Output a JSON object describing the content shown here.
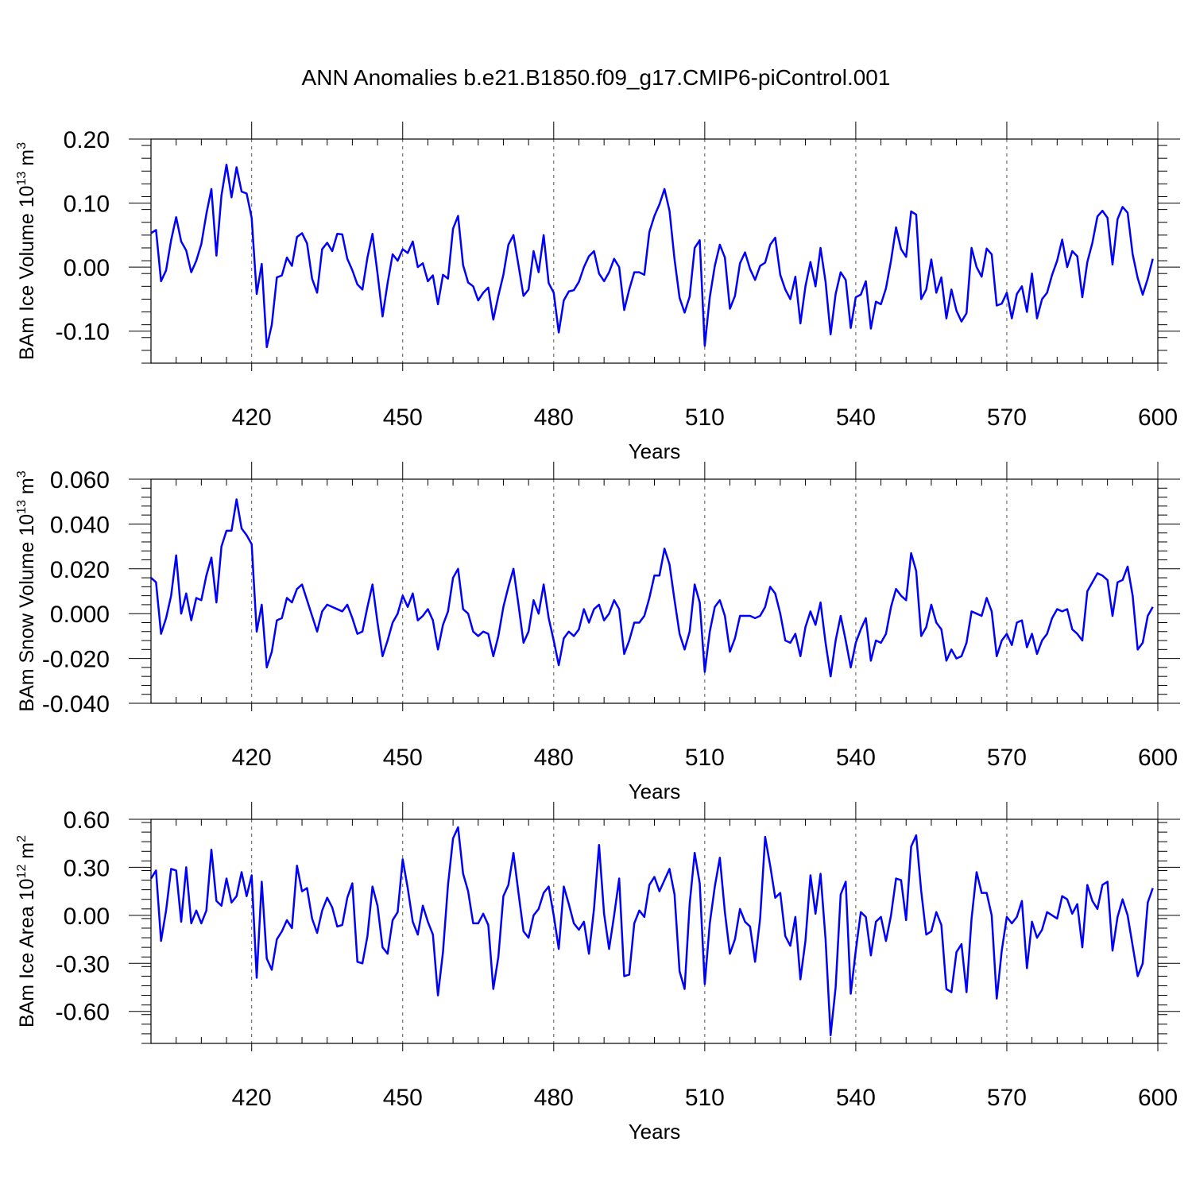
{
  "title": "ANN Anomalies b.e21.B1850.f09_g17.CMIP6-piControl.001",
  "line_color": "#0000ff",
  "chart_data": [
    {
      "type": "line",
      "ylabel": "BAm Ice Volume 10",
      "ylabel_exp": "13",
      "ylabel_unit": " m",
      "ylabel_unit_exp": "3",
      "xlabel": "Years",
      "xlim": [
        400,
        600
      ],
      "ylim": [
        -0.15,
        0.2
      ],
      "xticks": [
        420,
        450,
        480,
        510,
        540,
        570,
        600
      ],
      "xtick_labels": [
        "420",
        "450",
        "480",
        "510",
        "540",
        "570",
        "600"
      ],
      "yticks": [
        -0.1,
        0.0,
        0.1,
        0.2
      ],
      "ytick_labels": [
        "-0.10",
        "0.00",
        "0.10",
        "0.20"
      ],
      "grid": "vertical dashed at major x ticks",
      "series": [
        {
          "x_start": 400,
          "values": [
            0.053,
            0.058,
            -0.022,
            -0.005,
            0.042,
            0.078,
            0.04,
            0.026,
            -0.008,
            0.01,
            0.036,
            0.083,
            0.122,
            0.018,
            0.112,
            0.16,
            0.109,
            0.156,
            0.118,
            0.115,
            0.077,
            -0.042,
            0.005,
            -0.125,
            -0.09,
            -0.016,
            -0.013,
            0.015,
            0.002,
            0.047,
            0.053,
            0.037,
            -0.018,
            -0.04,
            0.028,
            0.038,
            0.025,
            0.052,
            0.051,
            0.013,
            -0.005,
            -0.027,
            -0.035,
            0.015,
            0.052,
            -0.01,
            -0.077,
            -0.025,
            0.02,
            0.01,
            0.028,
            0.022,
            0.04,
            0.0,
            0.006,
            -0.022,
            -0.013,
            -0.058,
            -0.012,
            -0.018,
            0.06,
            0.08,
            0.003,
            -0.024,
            -0.03,
            -0.052,
            -0.04,
            -0.032,
            -0.082,
            -0.045,
            -0.012,
            0.035,
            0.05,
            0.003,
            -0.045,
            -0.035,
            0.025,
            -0.008,
            0.05,
            -0.025,
            -0.04,
            -0.102,
            -0.052,
            -0.038,
            -0.036,
            -0.023,
            0.0,
            0.017,
            0.025,
            -0.01,
            -0.022,
            -0.008,
            0.013,
            0.0,
            -0.067,
            -0.035,
            -0.008,
            -0.008,
            -0.012,
            0.055,
            0.08,
            0.098,
            0.122,
            0.088,
            0.012,
            -0.048,
            -0.071,
            -0.046,
            0.03,
            0.042,
            -0.123,
            -0.047,
            0.002,
            0.035,
            0.015,
            -0.065,
            -0.045,
            0.006,
            0.023,
            -0.003,
            -0.02,
            0.002,
            0.007,
            0.035,
            0.046,
            -0.012,
            -0.035,
            -0.05,
            -0.015,
            -0.088,
            -0.03,
            0.008,
            -0.03,
            0.03,
            -0.023,
            -0.105,
            -0.042,
            -0.008,
            -0.02,
            -0.095,
            -0.047,
            -0.043,
            -0.022,
            -0.096,
            -0.054,
            -0.058,
            -0.033,
            0.01,
            0.062,
            0.028,
            0.016,
            0.087,
            0.082,
            -0.05,
            -0.035,
            0.012,
            -0.04,
            -0.016,
            -0.08,
            -0.035,
            -0.068,
            -0.085,
            -0.072,
            0.03,
            0.0,
            -0.015,
            0.029,
            0.02,
            -0.06,
            -0.057,
            -0.04,
            -0.08,
            -0.042,
            -0.03,
            -0.07,
            -0.01,
            -0.08,
            -0.05,
            -0.04,
            -0.012,
            0.01,
            0.043,
            0.0,
            0.025,
            0.017,
            -0.047,
            0.008,
            0.038,
            0.079,
            0.088,
            0.077,
            0.004,
            0.075,
            0.094,
            0.085,
            0.02,
            -0.017,
            -0.043,
            -0.018,
            0.013
          ]
        }
      ]
    },
    {
      "type": "line",
      "ylabel": "BAm Snow Volume 10",
      "ylabel_exp": "13",
      "ylabel_unit": " m",
      "ylabel_unit_exp": "3",
      "xlabel": "Years",
      "xlim": [
        400,
        600
      ],
      "ylim": [
        -0.04,
        0.06
      ],
      "xticks": [
        420,
        450,
        480,
        510,
        540,
        570,
        600
      ],
      "xtick_labels": [
        "420",
        "450",
        "480",
        "510",
        "540",
        "570",
        "600"
      ],
      "yticks": [
        -0.04,
        -0.02,
        0.0,
        0.02,
        0.04,
        0.06
      ],
      "ytick_labels": [
        "-0.040",
        "-0.020",
        "0.000",
        "0.020",
        "0.040",
        "0.060"
      ],
      "grid": "vertical dashed at major x ticks",
      "series": [
        {
          "x_start": 400,
          "values": [
            0.016,
            0.014,
            -0.009,
            -0.002,
            0.008,
            0.026,
            0.0,
            0.009,
            -0.003,
            0.007,
            0.006,
            0.017,
            0.025,
            0.005,
            0.03,
            0.037,
            0.037,
            0.051,
            0.038,
            0.035,
            0.031,
            -0.008,
            0.004,
            -0.024,
            -0.017,
            -0.003,
            -0.002,
            0.007,
            0.005,
            0.011,
            0.013,
            0.006,
            -0.001,
            -0.008,
            0.001,
            0.004,
            0.003,
            0.002,
            0.001,
            0.004,
            -0.002,
            -0.009,
            -0.008,
            0.003,
            0.013,
            -0.004,
            -0.019,
            -0.012,
            -0.004,
            0.0,
            0.008,
            0.003,
            0.009,
            -0.003,
            -0.001,
            0.002,
            -0.003,
            -0.016,
            -0.005,
            0.001,
            0.016,
            0.02,
            0.002,
            0.0,
            -0.008,
            -0.01,
            -0.008,
            -0.009,
            -0.019,
            -0.01,
            0.003,
            0.012,
            0.02,
            0.004,
            -0.013,
            -0.008,
            0.006,
            0.0,
            0.013,
            -0.002,
            -0.012,
            -0.023,
            -0.011,
            -0.008,
            -0.01,
            -0.007,
            0.002,
            -0.004,
            0.002,
            0.004,
            -0.003,
            0.0,
            0.006,
            0.002,
            -0.018,
            -0.012,
            -0.004,
            -0.004,
            -0.001,
            0.007,
            0.017,
            0.017,
            0.029,
            0.022,
            0.006,
            -0.009,
            -0.016,
            -0.008,
            0.013,
            0.005,
            -0.026,
            -0.008,
            0.003,
            0.006,
            -0.001,
            -0.017,
            -0.011,
            -0.001,
            -0.001,
            -0.001,
            -0.002,
            -0.001,
            0.003,
            0.012,
            0.009,
            0.0,
            -0.012,
            -0.013,
            -0.009,
            -0.019,
            -0.006,
            0.001,
            -0.005,
            0.005,
            -0.013,
            -0.028,
            -0.012,
            -0.001,
            -0.012,
            -0.024,
            -0.013,
            -0.007,
            -0.002,
            -0.021,
            -0.012,
            -0.013,
            -0.009,
            0.003,
            0.011,
            0.008,
            0.006,
            0.027,
            0.019,
            -0.01,
            -0.006,
            0.004,
            -0.004,
            -0.007,
            -0.021,
            -0.016,
            -0.02,
            -0.019,
            -0.013,
            0.001,
            0.0,
            -0.001,
            0.007,
            0.001,
            -0.019,
            -0.012,
            -0.009,
            -0.014,
            -0.004,
            -0.003,
            -0.015,
            -0.009,
            -0.018,
            -0.012,
            -0.009,
            -0.002,
            0.002,
            0.001,
            0.002,
            -0.007,
            -0.009,
            -0.012,
            0.01,
            0.014,
            0.018,
            0.017,
            0.015,
            -0.001,
            0.014,
            0.015,
            0.021,
            0.008,
            -0.016,
            -0.013,
            -0.001,
            0.003
          ]
        }
      ]
    },
    {
      "type": "line",
      "ylabel": "BAm Ice Area 10",
      "ylabel_exp": "12",
      "ylabel_unit": " m",
      "ylabel_unit_exp": "2",
      "xlabel": "Years",
      "xlim": [
        400,
        600
      ],
      "ylim": [
        -0.8,
        0.6
      ],
      "xticks": [
        420,
        450,
        480,
        510,
        540,
        570,
        600
      ],
      "xtick_labels": [
        "420",
        "450",
        "480",
        "510",
        "540",
        "570",
        "600"
      ],
      "yticks": [
        -0.6,
        -0.3,
        0.0,
        0.3,
        0.6
      ],
      "ytick_labels": [
        "-0.60",
        "-0.30",
        "0.00",
        "0.30",
        "0.60"
      ],
      "grid": "vertical dashed at major x ticks",
      "series": [
        {
          "x_start": 400,
          "values": [
            0.23,
            0.28,
            -0.16,
            0.03,
            0.29,
            0.28,
            -0.04,
            0.3,
            -0.05,
            0.03,
            -0.05,
            0.03,
            0.41,
            0.09,
            0.06,
            0.23,
            0.08,
            0.12,
            0.27,
            0.12,
            0.25,
            -0.39,
            0.21,
            -0.27,
            -0.34,
            -0.15,
            -0.1,
            -0.03,
            -0.08,
            0.31,
            0.15,
            0.17,
            -0.02,
            -0.11,
            0.03,
            0.11,
            0.05,
            -0.07,
            -0.06,
            0.11,
            0.2,
            -0.29,
            -0.3,
            -0.13,
            0.18,
            0.06,
            -0.2,
            -0.24,
            -0.03,
            0.02,
            0.35,
            0.17,
            -0.04,
            -0.12,
            0.06,
            -0.04,
            -0.12,
            -0.5,
            -0.23,
            0.19,
            0.48,
            0.55,
            0.26,
            0.15,
            -0.05,
            -0.05,
            0.01,
            -0.06,
            -0.46,
            -0.26,
            0.12,
            0.19,
            0.39,
            0.14,
            -0.1,
            -0.14,
            0.0,
            0.04,
            0.14,
            0.18,
            0.0,
            -0.21,
            0.18,
            0.07,
            -0.05,
            -0.09,
            -0.04,
            -0.24,
            0.04,
            0.44,
            0.01,
            -0.21,
            0.0,
            0.23,
            -0.38,
            -0.37,
            -0.05,
            0.03,
            -0.01,
            0.19,
            0.24,
            0.15,
            0.22,
            0.29,
            0.13,
            -0.35,
            -0.46,
            0.07,
            0.39,
            0.2,
            -0.43,
            -0.05,
            0.18,
            0.36,
            0.02,
            -0.24,
            -0.15,
            0.04,
            -0.04,
            -0.07,
            -0.29,
            -0.02,
            0.49,
            0.31,
            0.11,
            0.14,
            -0.13,
            -0.19,
            -0.01,
            -0.4,
            -0.16,
            0.25,
            0.01,
            0.26,
            -0.15,
            -0.75,
            -0.45,
            0.13,
            0.21,
            -0.49,
            -0.22,
            0.02,
            -0.01,
            -0.25,
            -0.04,
            -0.01,
            -0.16,
            0.0,
            0.23,
            0.22,
            -0.03,
            0.43,
            0.5,
            0.15,
            -0.12,
            -0.1,
            0.02,
            -0.06,
            -0.46,
            -0.48,
            -0.23,
            -0.18,
            -0.48,
            -0.02,
            0.27,
            0.14,
            0.14,
            0.0,
            -0.52,
            -0.22,
            -0.01,
            -0.05,
            -0.01,
            0.09,
            -0.33,
            -0.04,
            -0.14,
            -0.09,
            0.02,
            0.0,
            -0.02,
            0.12,
            0.1,
            0.01,
            0.07,
            -0.2,
            0.19,
            0.09,
            0.04,
            0.19,
            0.21,
            -0.22,
            -0.01,
            0.1,
            0.0,
            -0.19,
            -0.38,
            -0.3,
            0.08,
            0.17
          ]
        }
      ]
    }
  ]
}
